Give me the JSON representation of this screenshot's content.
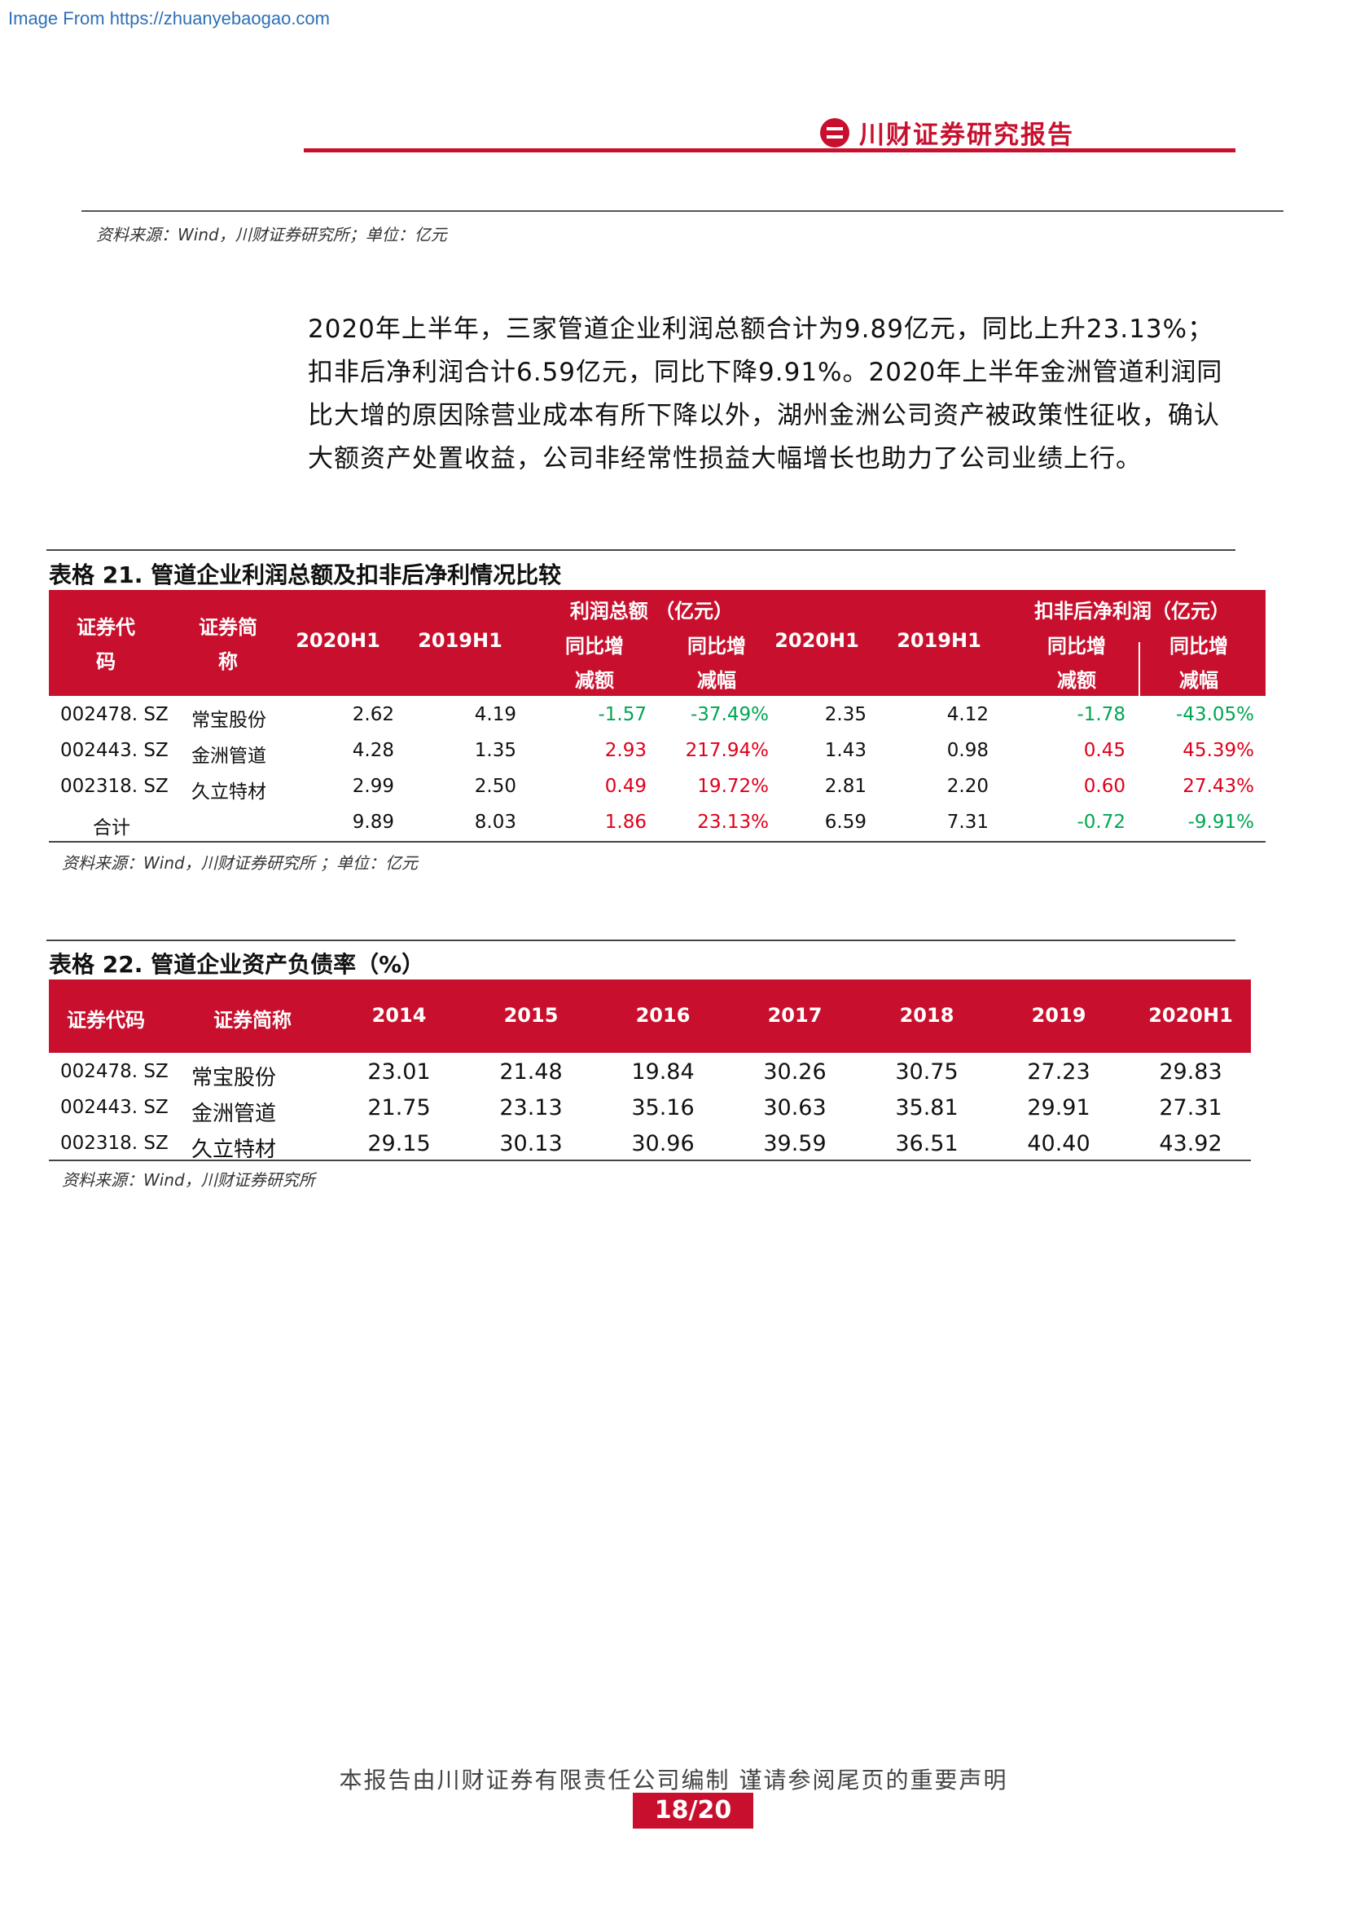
{
  "source_link": "Image From https://zhuanyebaogao.com",
  "brand": {
    "name": "川财证券研究报告"
  },
  "note_top": "资料来源：Wind，川财证券研究所；单位：亿元",
  "paragraph": "2020年上半年，三家管道企业利润总额合计为9.89亿元，同比上升23.13%；扣非后净利润合计6.59亿元，同比下降9.91%。2020年上半年金洲管道利润同比大增的原因除营业成本有所下降以外，湖州金洲公司资产被政策性征收，确认大额资产处置收益，公司非经常性损益大幅增长也助力了公司业绩上行。",
  "table21": {
    "title": "表格 21.  管道企业利润总额及扣非后净利情况比较",
    "headers": {
      "code": "证券代码",
      "name": "证券简称",
      "group1": "利润总额 （亿元）",
      "group2": "扣非后净利润（亿元）",
      "h2020": "2020H1",
      "h2019": "2019H1",
      "chg": "同比增减额",
      "pct": "同比增减幅"
    },
    "rows": [
      {
        "code": "002478. SZ",
        "name": "常宝股份",
        "p20": "2.62",
        "p19": "4.19",
        "pchg": "-1.57",
        "ppct": "-37.49%",
        "n20": "2.35",
        "n19": "4.12",
        "nchg": "-1.78",
        "npct": "-43.05%"
      },
      {
        "code": "002443. SZ",
        "name": "金洲管道",
        "p20": "4.28",
        "p19": "1.35",
        "pchg": "2.93",
        "ppct": "217.94%",
        "n20": "1.43",
        "n19": "0.98",
        "nchg": "0.45",
        "npct": "45.39%"
      },
      {
        "code": "002318. SZ",
        "name": "久立特材",
        "p20": "2.99",
        "p19": "2.50",
        "pchg": "0.49",
        "ppct": "19.72%",
        "n20": "2.81",
        "n19": "2.20",
        "nchg": "0.60",
        "npct": "27.43%"
      },
      {
        "code": "合计",
        "name": "",
        "p20": "9.89",
        "p19": "8.03",
        "pchg": "1.86",
        "ppct": "23.13%",
        "n20": "6.59",
        "n19": "7.31",
        "nchg": "-0.72",
        "npct": "-9.91%"
      }
    ],
    "note": "资料来源：Wind，川财证券研究所 ；单位：亿元"
  },
  "table22": {
    "title": "表格 22.  管道企业资产负债率（%）",
    "headers": [
      "证券代码",
      "证券简称",
      "2014",
      "2015",
      "2016",
      "2017",
      "2018",
      "2019",
      "2020H1"
    ],
    "rows": [
      [
        "002478. SZ",
        "常宝股份",
        "23.01",
        "21.48",
        "19.84",
        "30.26",
        "30.75",
        "27.23",
        "29.83"
      ],
      [
        "002443. SZ",
        "金洲管道",
        "21.75",
        "23.13",
        "35.16",
        "30.63",
        "35.81",
        "29.91",
        "27.31"
      ],
      [
        "002318. SZ",
        "久立特材",
        "29.15",
        "30.13",
        "30.96",
        "39.59",
        "36.51",
        "40.40",
        "43.92"
      ]
    ],
    "note": "资料来源：Wind，川财证券研究所"
  },
  "footer": {
    "text": "本报告由川财证券有限责任公司编制  谨请参阅尾页的重要声明",
    "page": "18/20"
  },
  "colors": {
    "accent": "#c8102e",
    "negative": "#00a651",
    "positive": "#e0001b"
  }
}
